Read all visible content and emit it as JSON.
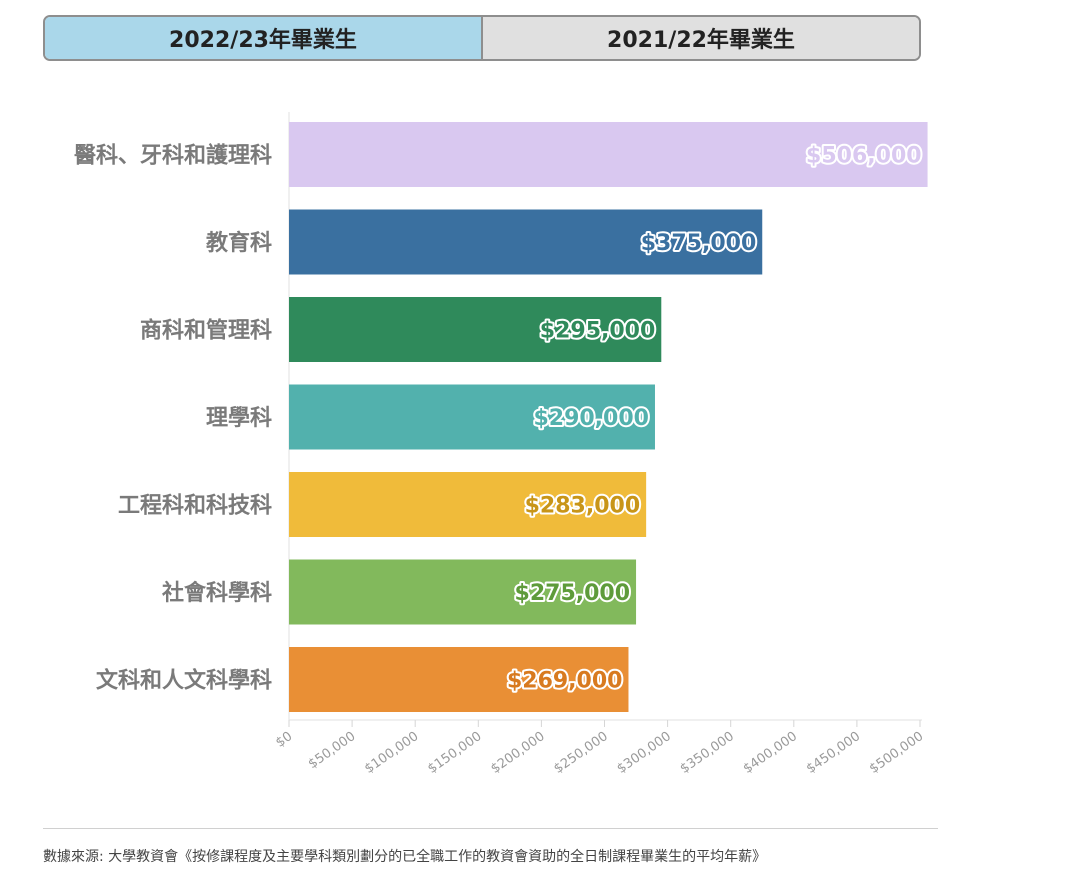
{
  "tabs": [
    {
      "label": "2022/23年畢業生",
      "active": true
    },
    {
      "label": "2021/22年畢業生",
      "active": false
    }
  ],
  "chart_data": {
    "type": "bar",
    "orientation": "horizontal",
    "categories": [
      "醫科、牙科和護理科",
      "教育科",
      "商科和管理科",
      "理學科",
      "工程科和科技科",
      "社會科學科",
      "文科和人文科學科"
    ],
    "values": [
      506000,
      375000,
      295000,
      290000,
      283000,
      275000,
      269000
    ],
    "value_labels": [
      "$506,000",
      "$375,000",
      "$295,000",
      "$290,000",
      "$283,000",
      "$275,000",
      "$269,000"
    ],
    "colors": [
      "#d9c8f0",
      "#3a70a0",
      "#2f8a5b",
      "#52b1ad",
      "#f0bb3a",
      "#82b95c",
      "#e98f35"
    ],
    "label_colors": [
      "#d9c8f0",
      "#3a70a0",
      "#2f8a5b",
      "#52b1ad",
      "#c89518",
      "#5e9b3a",
      "#d87a1f"
    ],
    "xlim": [
      0,
      500000
    ],
    "xticks": [
      0,
      50000,
      100000,
      150000,
      200000,
      250000,
      300000,
      350000,
      400000,
      450000,
      500000
    ],
    "xtick_labels": [
      "$0",
      "$50,000",
      "$100,000",
      "$150,000",
      "$200,000",
      "$250,000",
      "$300,000",
      "$350,000",
      "$400,000",
      "$450,000",
      "$500,000"
    ],
    "grid": false
  },
  "source": "數據來源: 大學教資會《按修課程度及主要學科類別劃分的已全職工作的教資會資助的全日制課程畢業生的平均年薪》"
}
